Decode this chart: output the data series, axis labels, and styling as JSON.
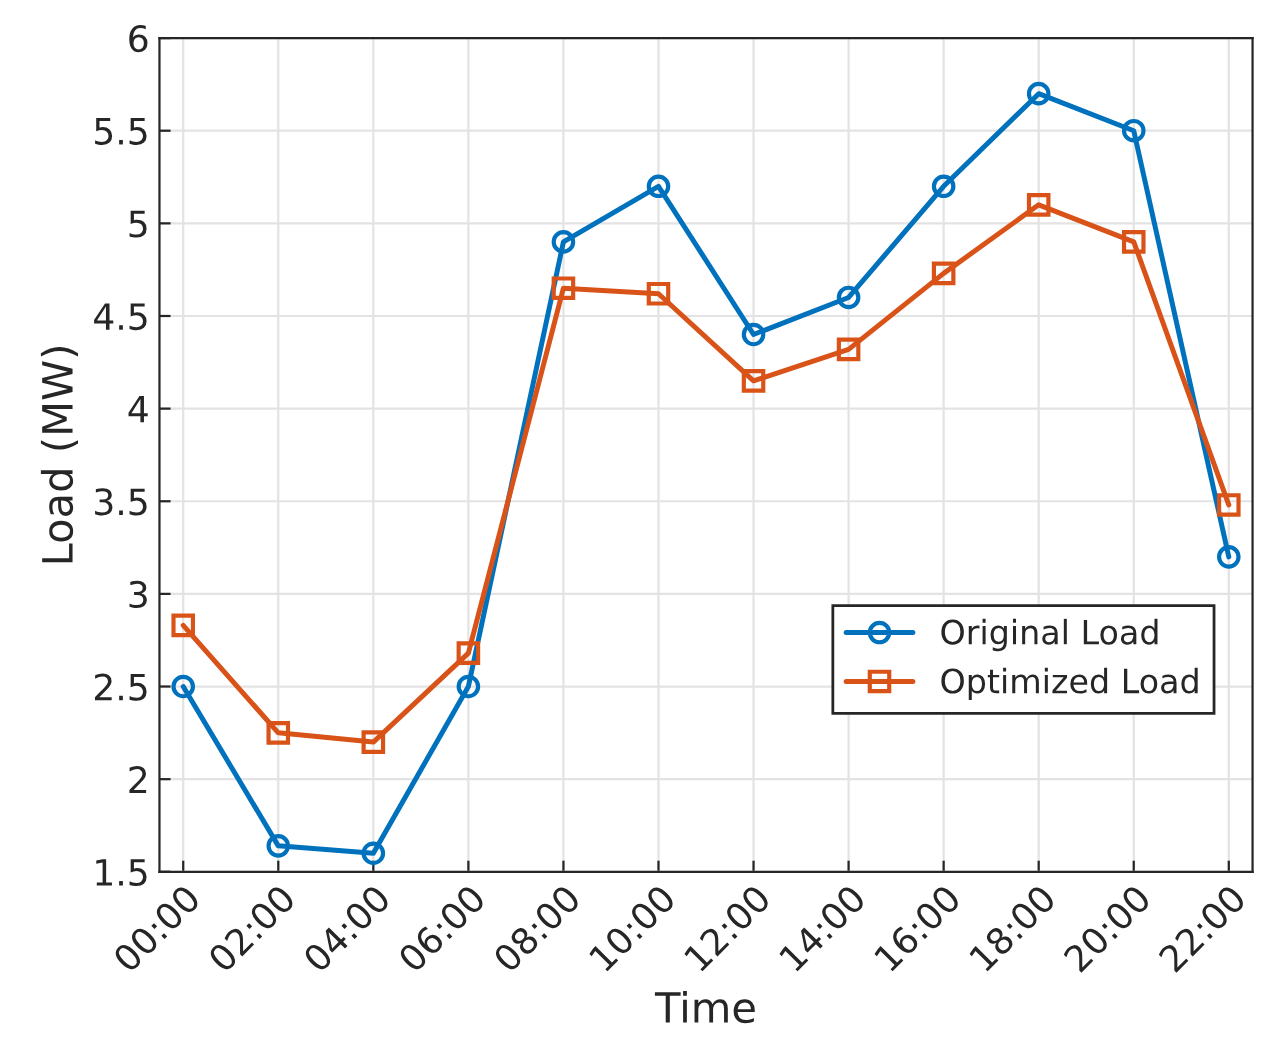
{
  "chart_data": {
    "type": "line",
    "xlabel": "Time",
    "ylabel": "Load (MW)",
    "x": [
      0,
      2,
      4,
      6,
      8,
      10,
      12,
      14,
      16,
      18,
      20,
      22
    ],
    "series": [
      {
        "name": "Original Load",
        "color": "#0072bd",
        "marker": "circle",
        "values": [
          2.5,
          1.64,
          1.6,
          2.5,
          4.9,
          5.2,
          4.4,
          4.6,
          5.2,
          5.7,
          5.5,
          3.2
        ]
      },
      {
        "name": "Optimized Load",
        "color": "#d95319",
        "marker": "square",
        "values": [
          2.83,
          2.25,
          2.2,
          2.68,
          4.65,
          4.62,
          4.15,
          4.32,
          4.73,
          5.1,
          4.9,
          3.48
        ]
      }
    ],
    "xlim": [
      -0.5,
      22.5
    ],
    "xticks": [
      {
        "value": 0,
        "label": "00:00"
      },
      {
        "value": 2,
        "label": "02:00"
      },
      {
        "value": 4,
        "label": "04:00"
      },
      {
        "value": 6,
        "label": "06:00"
      },
      {
        "value": 8,
        "label": "08:00"
      },
      {
        "value": 10,
        "label": "10:00"
      },
      {
        "value": 12,
        "label": "12:00"
      },
      {
        "value": 14,
        "label": "14:00"
      },
      {
        "value": 16,
        "label": "16:00"
      },
      {
        "value": 18,
        "label": "18:00"
      },
      {
        "value": 20,
        "label": "20:00"
      },
      {
        "value": 22,
        "label": "22:00"
      }
    ],
    "ylim": [
      1.5,
      6
    ],
    "yticks": [
      1.5,
      2,
      2.5,
      3,
      3.5,
      4,
      4.5,
      5,
      5.5,
      6
    ],
    "grid": true,
    "legend": "lower right",
    "line_style": "solid"
  }
}
